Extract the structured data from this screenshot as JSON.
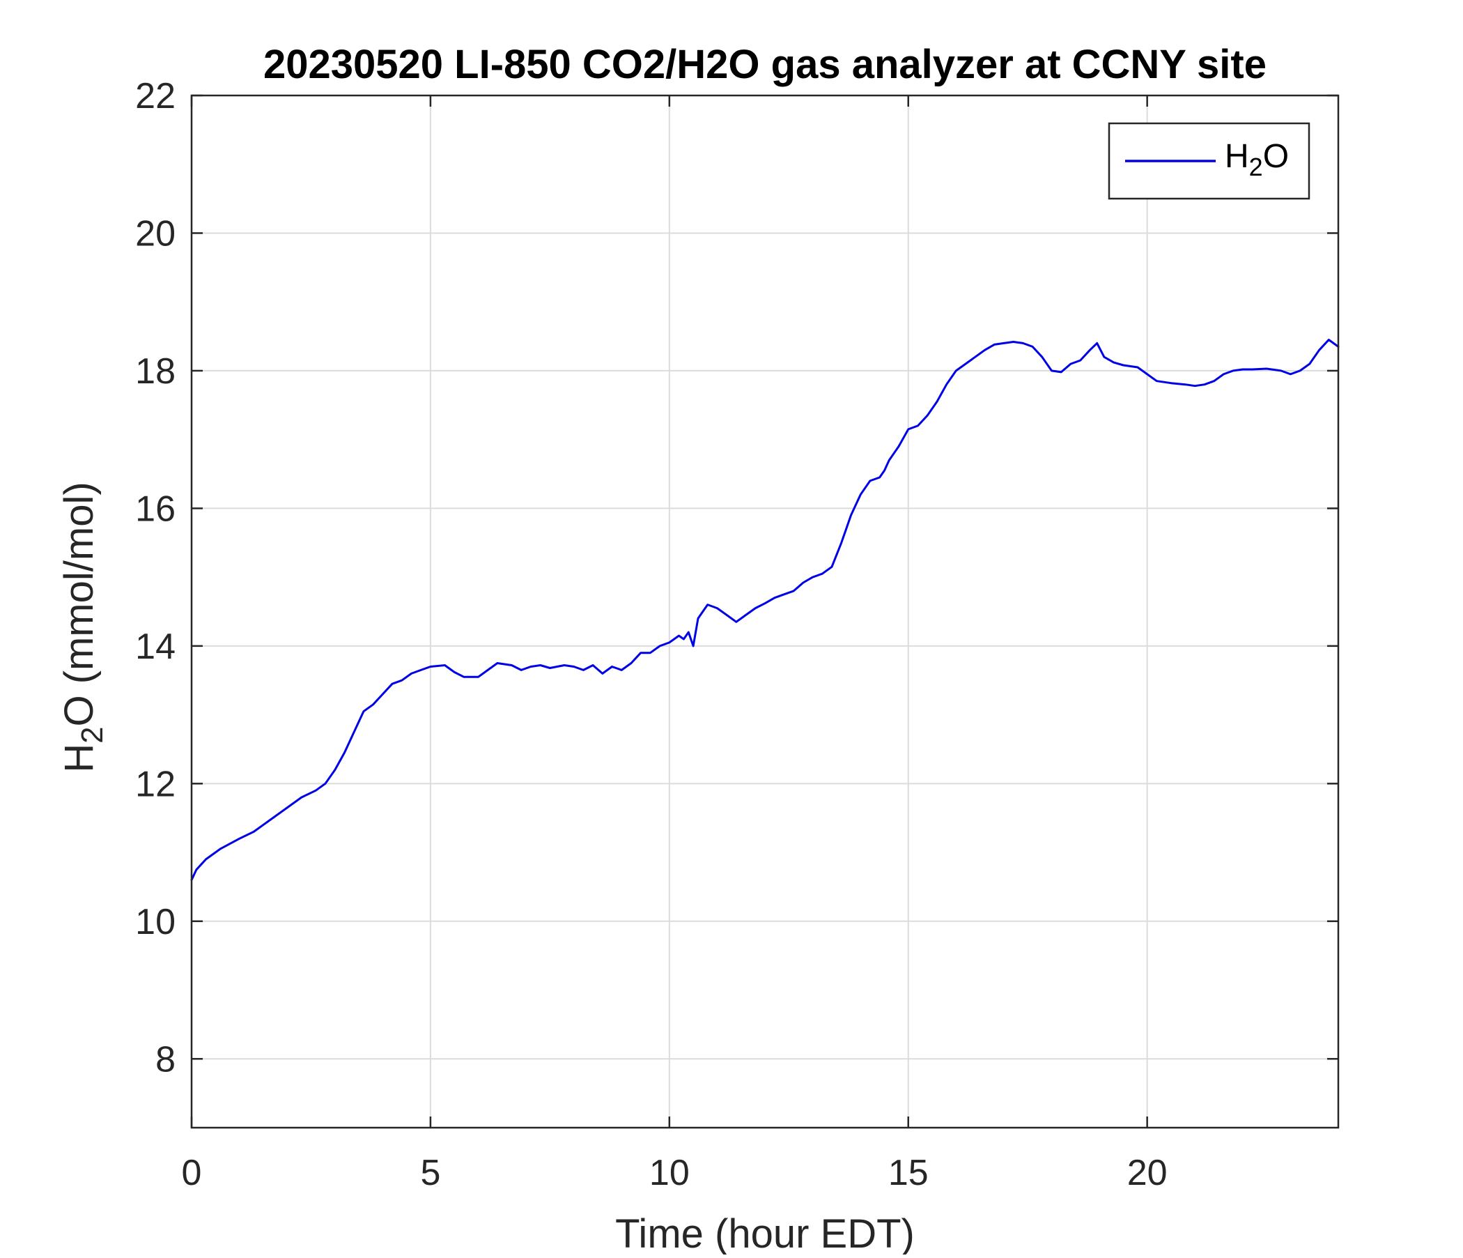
{
  "chart_data": {
    "type": "line",
    "title": "20230520 LI-850 CO2/H2O gas analyzer at CCNY site",
    "xlabel": "Time (hour EDT)",
    "ylabel_main": "H",
    "ylabel_sub": "2",
    "ylabel_rest": "O (mmol/mol)",
    "xlim": [
      0,
      24
    ],
    "ylim": [
      7,
      22
    ],
    "xticks": [
      0,
      5,
      10,
      15,
      20
    ],
    "yticks": [
      8,
      10,
      12,
      14,
      16,
      18,
      20,
      22
    ],
    "grid": true,
    "legend_position": "top-right",
    "series": [
      {
        "name_main": "H",
        "name_sub": "2",
        "name_rest": "O",
        "color": "#0000e6",
        "x": [
          0,
          0.1,
          0.3,
          0.6,
          1.0,
          1.3,
          1.6,
          2.0,
          2.3,
          2.6,
          2.8,
          3.0,
          3.2,
          3.4,
          3.6,
          3.8,
          4.0,
          4.2,
          4.4,
          4.6,
          4.8,
          5.0,
          5.3,
          5.5,
          5.7,
          6.0,
          6.2,
          6.4,
          6.7,
          6.9,
          7.1,
          7.3,
          7.5,
          7.8,
          8.0,
          8.2,
          8.4,
          8.6,
          8.8,
          9.0,
          9.2,
          9.4,
          9.6,
          9.8,
          10.0,
          10.2,
          10.3,
          10.4,
          10.5,
          10.6,
          10.7,
          10.8,
          11.0,
          11.2,
          11.4,
          11.5,
          11.6,
          11.8,
          12.0,
          12.2,
          12.4,
          12.6,
          12.8,
          13.0,
          13.2,
          13.4,
          13.6,
          13.8,
          14.0,
          14.2,
          14.4,
          14.5,
          14.6,
          14.8,
          15.0,
          15.2,
          15.4,
          15.6,
          15.8,
          16.0,
          16.2,
          16.4,
          16.6,
          16.8,
          17.0,
          17.2,
          17.4,
          17.6,
          17.8,
          18.0,
          18.2,
          18.4,
          18.6,
          18.8,
          18.95,
          19.1,
          19.3,
          19.5,
          19.8,
          20.0,
          20.2,
          20.5,
          20.8,
          21.0,
          21.2,
          21.4,
          21.6,
          21.8,
          22.0,
          22.2,
          22.5,
          22.8,
          23.0,
          23.2,
          23.4,
          23.6,
          23.8,
          24.0
        ],
        "y": [
          10.6,
          10.75,
          10.9,
          11.05,
          11.2,
          11.3,
          11.45,
          11.65,
          11.8,
          11.9,
          12.0,
          12.2,
          12.45,
          12.75,
          13.05,
          13.15,
          13.3,
          13.45,
          13.5,
          13.6,
          13.65,
          13.7,
          13.72,
          13.62,
          13.55,
          13.55,
          13.65,
          13.75,
          13.72,
          13.65,
          13.7,
          13.72,
          13.68,
          13.72,
          13.7,
          13.65,
          13.72,
          13.6,
          13.7,
          13.65,
          13.75,
          13.9,
          13.9,
          14.0,
          14.05,
          14.15,
          14.1,
          14.2,
          14.0,
          14.4,
          14.5,
          14.6,
          14.55,
          14.45,
          14.35,
          14.4,
          14.45,
          14.55,
          14.62,
          14.7,
          14.75,
          14.8,
          14.92,
          15.0,
          15.05,
          15.15,
          15.5,
          15.9,
          16.2,
          16.4,
          16.45,
          16.55,
          16.7,
          16.9,
          17.15,
          17.2,
          17.35,
          17.55,
          17.8,
          18.0,
          18.1,
          18.2,
          18.3,
          18.38,
          18.4,
          18.42,
          18.4,
          18.35,
          18.2,
          18.0,
          17.98,
          18.1,
          18.15,
          18.3,
          18.4,
          18.2,
          18.12,
          18.08,
          18.05,
          17.95,
          17.85,
          17.82,
          17.8,
          17.78,
          17.8,
          17.85,
          17.95,
          18.0,
          18.02,
          18.02,
          18.03,
          18.0,
          17.95,
          18.0,
          18.1,
          18.3,
          18.45,
          18.35
        ]
      }
    ]
  }
}
